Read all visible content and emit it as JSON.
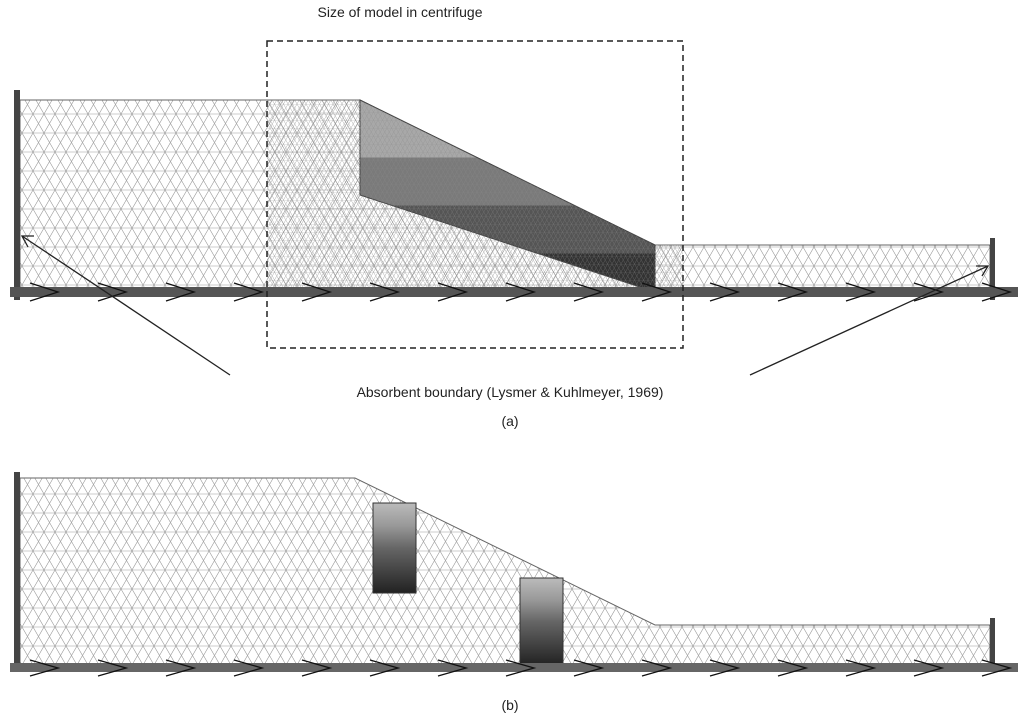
{
  "panel_a": {
    "top_label": "Size of model in centrifuge",
    "boundary_label": "Absorbent boundary (Lysmer & Kuhlmeyer, 1969)",
    "caption": "(a)"
  },
  "panel_b": {
    "caption": "(b)"
  }
}
